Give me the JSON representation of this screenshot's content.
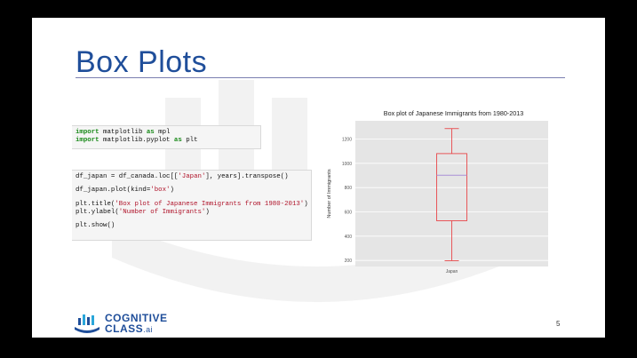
{
  "slide": {
    "title": "Box Plots",
    "page_number": "5"
  },
  "code_block_1": {
    "line1_kw1": "import",
    "line1_mid": " matplotlib ",
    "line1_kw2": "as",
    "line1_end": " mpl",
    "line2_kw1": "import",
    "line2_mid": " matplotlib.pyplot ",
    "line2_kw2": "as",
    "line2_end": " plt"
  },
  "code_block_2": {
    "l1_a": "df_japan = df_canada.loc[[",
    "l1_str": "'Japan'",
    "l1_b": "], years].transpose()",
    "l2_a": "df_japan.plot(kind=",
    "l2_str": "'box'",
    "l2_b": ")",
    "l3_a": "plt.title(",
    "l3_str": "'Box plot of Japanese Immigrants from 1980-2013'",
    "l3_b": ")",
    "l4_a": "plt.ylabel(",
    "l4_str": "'Number of Immigrants'",
    "l4_b": ")",
    "l5": "plt.show()"
  },
  "logo": {
    "line1": "COGNITIVE",
    "line2": "CLASS",
    "suffix": ".ai"
  },
  "colors": {
    "title": "#1f4e9a",
    "box": "#e8474a",
    "median": "#a98fd6",
    "plot_bg": "#e5e5e5",
    "keyword": "#1a8a1a",
    "string": "#b0152b"
  },
  "chart_data": {
    "type": "box",
    "title": "Box plot of Japanese Immigrants from 1980-2013",
    "xlabel": "",
    "ylabel": "Number of Immigrants",
    "categories": [
      "Japan"
    ],
    "ylim": [
      150,
      1350
    ],
    "yticks": [
      200,
      400,
      600,
      800,
      1000,
      1200
    ],
    "grid": true,
    "boxes": [
      {
        "label": "Japan",
        "min": 198,
        "q1": 527,
        "median": 902,
        "q3": 1080,
        "max": 1286
      }
    ]
  }
}
